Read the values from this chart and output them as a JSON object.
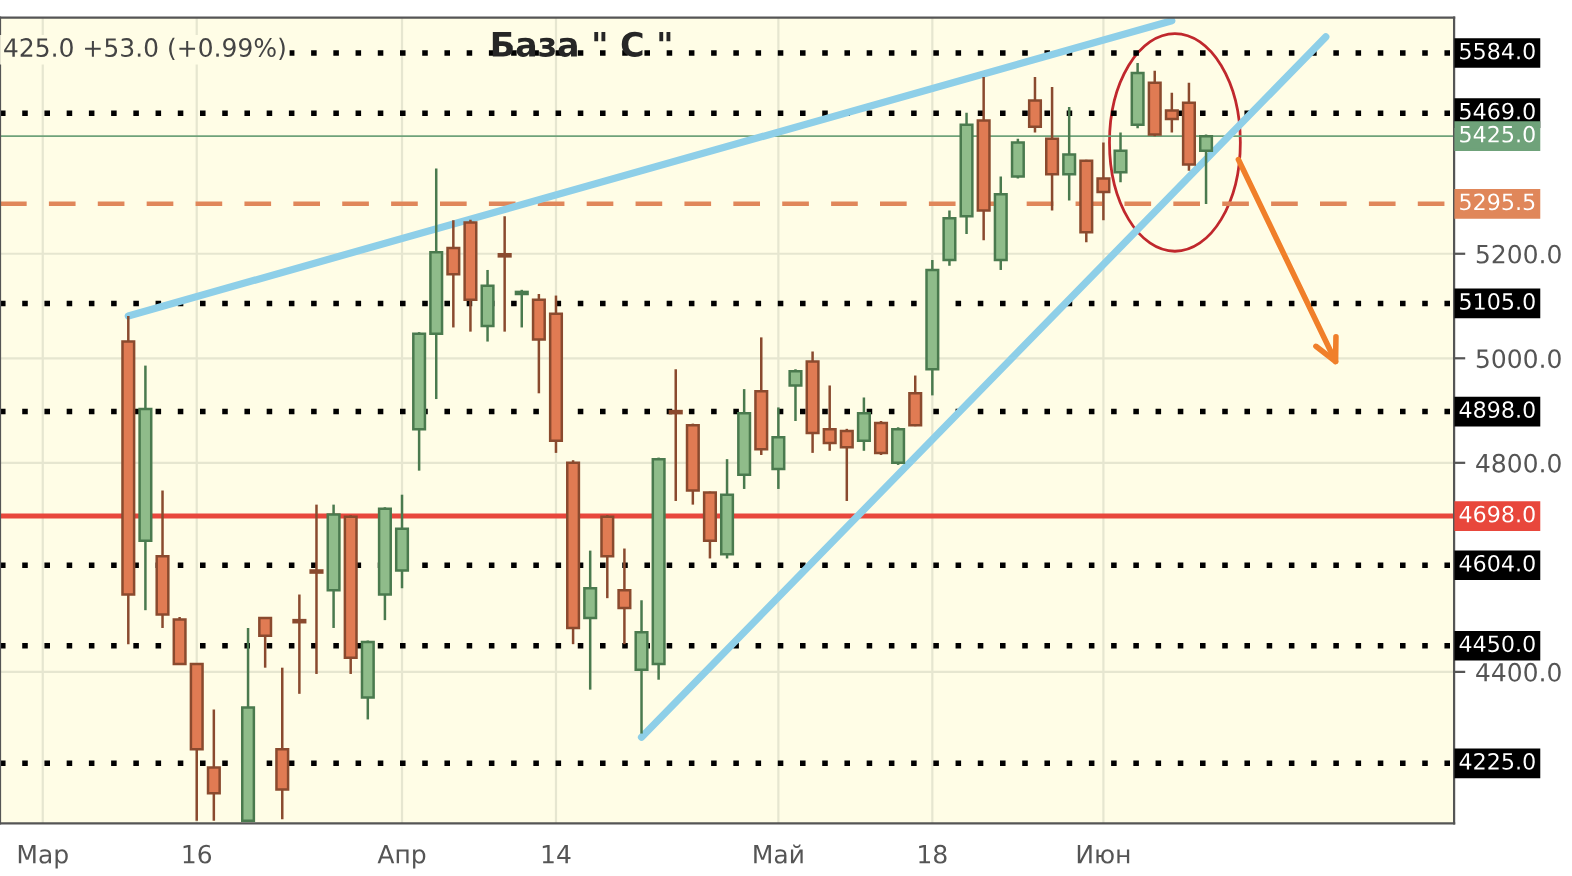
{
  "chart_data": {
    "type": "candlestick",
    "title": "База \" C \"",
    "categories": [
      null,
      null,
      "Мар",
      null,
      null,
      null,
      null,
      null,
      null,
      null,
      null,
      "16",
      null,
      null,
      null,
      null,
      null,
      null,
      null,
      null,
      null,
      null,
      null,
      "Апр",
      null,
      null,
      null,
      null,
      null,
      null,
      null,
      null,
      "14",
      null,
      null,
      null,
      null,
      null,
      null,
      null,
      null,
      null,
      null,
      null,
      null,
      "Май",
      null,
      null,
      null,
      null,
      null,
      null,
      null,
      null,
      "18",
      null,
      null,
      null,
      null,
      null,
      null,
      null,
      null,
      null,
      "Июн",
      null,
      null,
      null,
      null,
      null,
      null,
      null,
      null,
      null,
      null,
      null,
      null,
      null,
      null,
      null,
      null,
      null,
      null,
      null,
      null
    ],
    "ohlc": [
      null,
      null,
      null,
      null,
      null,
      null,
      null,
      [
        5032,
        5081,
        4453,
        4548
      ],
      [
        4651,
        4986,
        4518,
        4903
      ],
      [
        4621,
        4747,
        4484,
        4510
      ],
      [
        4500,
        4505,
        4415,
        4415
      ],
      [
        4415,
        4415,
        4115,
        4252
      ],
      [
        4217,
        4328,
        4115,
        4168
      ],
      null,
      [
        4115,
        4484,
        4115,
        4332
      ],
      [
        4503,
        4505,
        4408,
        4469
      ],
      [
        4252,
        4408,
        4118,
        4175
      ],
      [
        4499,
        4548,
        4358,
        4495
      ],
      [
        4594,
        4720,
        4396,
        4590
      ],
      [
        4556,
        4720,
        4484,
        4701
      ],
      [
        4697,
        4700,
        4396,
        4427
      ],
      [
        4351,
        4460,
        4309,
        4457
      ],
      [
        4548,
        4715,
        4499,
        4712
      ],
      [
        4594,
        4739,
        4560,
        4674
      ],
      [
        4864,
        5050,
        4785,
        5047
      ],
      [
        5047,
        5363,
        4922,
        5203
      ],
      [
        5211,
        5264,
        5059,
        5161
      ],
      [
        5260,
        5265,
        5051,
        5112
      ],
      [
        5062,
        5169,
        5032,
        5139
      ],
      [
        5199,
        5272,
        5051,
        5195
      ],
      [
        5123,
        5131,
        5059,
        5127
      ],
      [
        5112,
        5123,
        4933,
        5036
      ],
      [
        5085,
        5120,
        4819,
        4842
      ],
      [
        4800,
        4805,
        4453,
        4484
      ],
      [
        4503,
        4632,
        4366,
        4560
      ],
      [
        4697,
        4700,
        4541,
        4621
      ],
      [
        4556,
        4636,
        4453,
        4522
      ],
      [
        4404,
        4537,
        4282,
        4476
      ],
      [
        4415,
        4810,
        4385,
        4807
      ],
      [
        4899,
        4979,
        4727,
        4895
      ],
      [
        4872,
        4875,
        4720,
        4747
      ],
      [
        4743,
        4745,
        4617,
        4651
      ],
      [
        4625,
        4807,
        4617,
        4739
      ],
      [
        4777,
        4941,
        4750,
        4895
      ],
      [
        4937,
        5040,
        4815,
        4826
      ],
      [
        4788,
        4906,
        4750,
        4849
      ],
      [
        4948,
        4979,
        4880,
        4975
      ],
      [
        4994,
        5013,
        4819,
        4857
      ],
      [
        4864,
        4948,
        4823,
        4838
      ],
      [
        4861,
        4865,
        4727,
        4830
      ],
      [
        4842,
        4925,
        4823,
        4895
      ],
      [
        4876,
        4880,
        4815,
        4819
      ],
      [
        4800,
        4868,
        4796,
        4864
      ],
      [
        4933,
        4967,
        4870,
        4872
      ],
      [
        4979,
        5188,
        4929,
        5169
      ],
      [
        5188,
        5283,
        5177,
        5268
      ],
      [
        5272,
        5470,
        5238,
        5447
      ],
      [
        5455,
        5538,
        5226,
        5283
      ],
      [
        5188,
        5348,
        5169,
        5314
      ],
      [
        5348,
        5420,
        5344,
        5413
      ],
      [
        5493,
        5538,
        5432,
        5443
      ],
      [
        5420,
        5519,
        5283,
        5352
      ],
      [
        5352,
        5481,
        5302,
        5390
      ],
      [
        5378,
        5380,
        5222,
        5241
      ],
      [
        5344,
        5413,
        5264,
        5318
      ],
      [
        5356,
        5432,
        5337,
        5397
      ],
      [
        5447,
        5565,
        5440,
        5546
      ],
      [
        5527,
        5550,
        5425,
        5428
      ],
      [
        5474,
        5508,
        5432,
        5458
      ],
      [
        5489,
        5527,
        5359,
        5371
      ],
      [
        5397,
        5428,
        5295,
        5425
      ],
      null,
      null,
      null,
      null,
      null,
      null,
      null,
      null,
      null,
      null,
      null,
      null,
      null,
      null
    ],
    "series": [
      {
        "type": "line",
        "color": "#8ecfe8",
        "values": [
          null,
          null,
          null,
          null,
          null,
          null,
          null,
          5081,
          null,
          null,
          null,
          null,
          null,
          null,
          null,
          null,
          null,
          null,
          null,
          null,
          null,
          null,
          null,
          null,
          null,
          null,
          null,
          null,
          null,
          null,
          null,
          null,
          null,
          null,
          null,
          null,
          null,
          null,
          null,
          null,
          null,
          null,
          null,
          null,
          null,
          null,
          null,
          null,
          null,
          null,
          null,
          null,
          null,
          null,
          null,
          null,
          null,
          null,
          null,
          null,
          null,
          null,
          null,
          null,
          null,
          null,
          null,
          null,
          5646,
          null,
          null,
          null,
          null,
          null,
          null,
          null,
          null,
          null,
          null,
          null,
          null,
          null,
          null,
          null,
          null
        ]
      },
      {
        "type": "line",
        "color": "#8ecfe8",
        "values": [
          null,
          null,
          null,
          null,
          null,
          null,
          null,
          null,
          null,
          null,
          null,
          null,
          null,
          null,
          null,
          null,
          null,
          null,
          null,
          null,
          null,
          null,
          null,
          null,
          null,
          null,
          null,
          null,
          null,
          null,
          null,
          null,
          null,
          null,
          null,
          null,
          null,
          4275,
          null,
          null,
          null,
          null,
          null,
          null,
          null,
          null,
          null,
          null,
          null,
          null,
          null,
          null,
          null,
          null,
          null,
          null,
          null,
          null,
          null,
          null,
          null,
          null,
          null,
          null,
          null,
          null,
          null,
          null,
          null,
          null,
          null,
          null,
          null,
          null,
          null,
          null,
          null,
          5615,
          null,
          null,
          null,
          null,
          null,
          null,
          null
        ]
      }
    ],
    "ylim": [
      4110,
      5652
    ],
    "yticks": [
      {
        "value": 4400,
        "label": "4400.0"
      },
      {
        "value": 4800,
        "label": "4800.0"
      },
      {
        "value": 5000,
        "label": "5000.0"
      },
      {
        "value": 5200,
        "label": "5200.0"
      }
    ],
    "ref_lines": [
      {
        "axis": "y",
        "value": 5584,
        "label": "5584.0",
        "color": "#000000",
        "line_style": "dotted"
      },
      {
        "axis": "y",
        "value": 5469,
        "label": "5469.0",
        "color": "#000000",
        "line_style": "dotted"
      },
      {
        "axis": "y",
        "value": 5425,
        "label": "5425.0",
        "color": "#6fa27a",
        "line_style": "solid"
      },
      {
        "axis": "y",
        "value": 5295.5,
        "label": "5295.5",
        "color": "#e0875a",
        "line_style": "dashed"
      },
      {
        "axis": "y",
        "value": 5105,
        "label": "5105.0",
        "color": "#000000",
        "line_style": "dotted"
      },
      {
        "axis": "y",
        "value": 4898,
        "label": "4898.0",
        "color": "#000000",
        "line_style": "dotted"
      },
      {
        "axis": "y",
        "value": 4698,
        "label": "4698.0",
        "color": "#e8473c",
        "line_style": "solid"
      },
      {
        "axis": "y",
        "value": 4604,
        "label": "4604.0",
        "color": "#000000",
        "line_style": "dotted"
      },
      {
        "axis": "y",
        "value": 4450,
        "label": "4450.0",
        "color": "#000000",
        "line_style": "dotted"
      },
      {
        "axis": "y",
        "value": 4225,
        "label": "4225.0",
        "color": "#000000",
        "line_style": "dotted"
      }
    ],
    "annotations": [
      "425.0 +53.0 (+0.99%)"
    ],
    "grid": true
  }
}
